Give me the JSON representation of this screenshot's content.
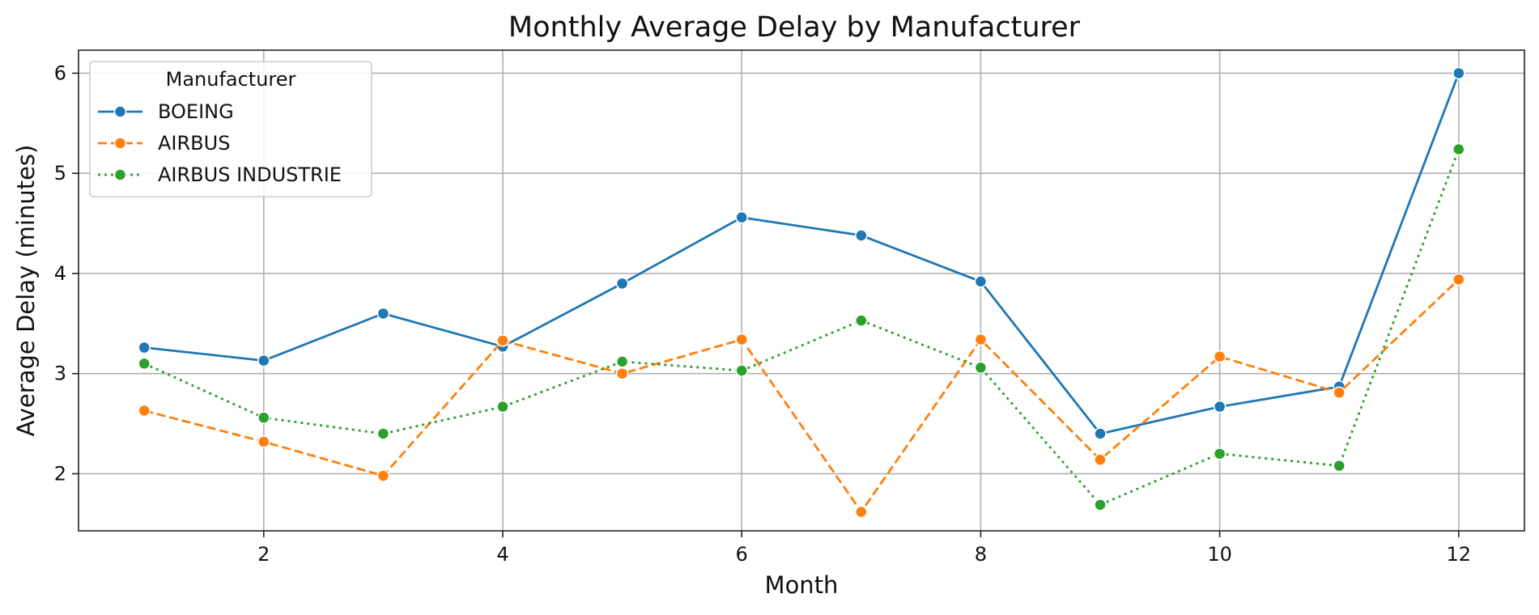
{
  "chart_data": {
    "type": "line",
    "title": "Monthly Average Delay by Manufacturer",
    "xlabel": "Month",
    "ylabel": "Average Delay (minutes)",
    "x": [
      1,
      2,
      3,
      4,
      5,
      6,
      7,
      8,
      9,
      10,
      11,
      12
    ],
    "xlim": [
      0.45,
      12.55
    ],
    "ylim": [
      1.43,
      6.23
    ],
    "xticks": [
      2,
      4,
      6,
      8,
      10,
      12
    ],
    "yticks": [
      2,
      3,
      4,
      5,
      6
    ],
    "grid": true,
    "legend": {
      "title": "Manufacturer",
      "placement": "top-left"
    },
    "series": [
      {
        "name": "BOEING",
        "color": "#1f77b4",
        "dash": "solid",
        "values": [
          3.26,
          3.13,
          3.6,
          3.27,
          3.9,
          4.56,
          4.38,
          3.92,
          2.4,
          2.67,
          2.87,
          6.0
        ]
      },
      {
        "name": "AIRBUS",
        "color": "#ff7f0e",
        "dash": "dashed",
        "values": [
          2.63,
          2.32,
          1.98,
          3.33,
          3.0,
          3.34,
          1.62,
          3.34,
          2.14,
          3.17,
          2.81,
          3.94
        ]
      },
      {
        "name": "AIRBUS INDUSTRIE",
        "color": "#2ca02c",
        "dash": "dotted",
        "values": [
          3.1,
          2.56,
          2.4,
          2.67,
          3.12,
          3.03,
          3.53,
          3.06,
          1.69,
          2.2,
          2.08,
          5.24
        ]
      }
    ]
  }
}
